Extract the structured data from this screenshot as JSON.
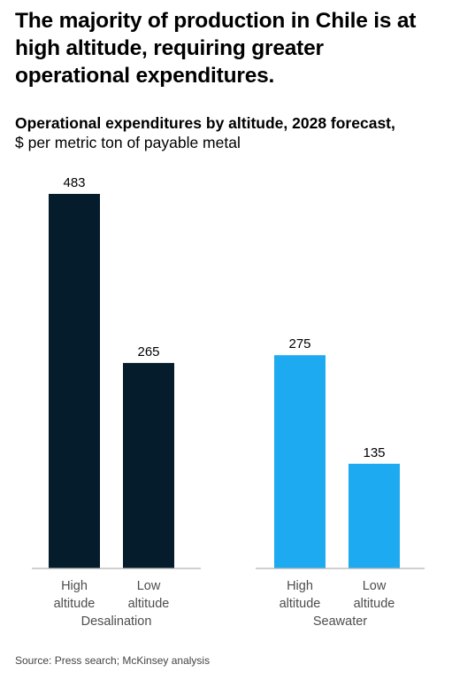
{
  "headline": "The majority of production in Chile is at high altitude, requiring greater operational expenditures.",
  "chart_title": "Operational expenditures by altitude, 2028 forecast,",
  "chart_unit": "$ per metric ton of payable metal",
  "source": "Source: Press search; McKinsey analysis",
  "colors": {
    "desalination": "#051c2c",
    "seawater": "#1eaaf1",
    "axis": "#b3b3b3",
    "label": "#4d4d4d"
  },
  "chart_data": {
    "type": "bar",
    "groups": [
      {
        "name": "Desalination",
        "color": "#051c2c",
        "bars": [
          {
            "label": [
              "High",
              "altitude"
            ],
            "value": 483
          },
          {
            "label": [
              "Low",
              "altitude"
            ],
            "value": 265
          }
        ]
      },
      {
        "name": "Seawater",
        "color": "#1eaaf1",
        "bars": [
          {
            "label": [
              "High",
              "altitude"
            ],
            "value": 275
          },
          {
            "label": [
              "Low",
              "altitude"
            ],
            "value": 135
          }
        ]
      }
    ],
    "title": "Operational expenditures by altitude, 2028 forecast,",
    "ylabel": "$ per metric ton of payable metal",
    "xlabel": "",
    "ylim": [
      0,
      483
    ],
    "grid": false
  }
}
